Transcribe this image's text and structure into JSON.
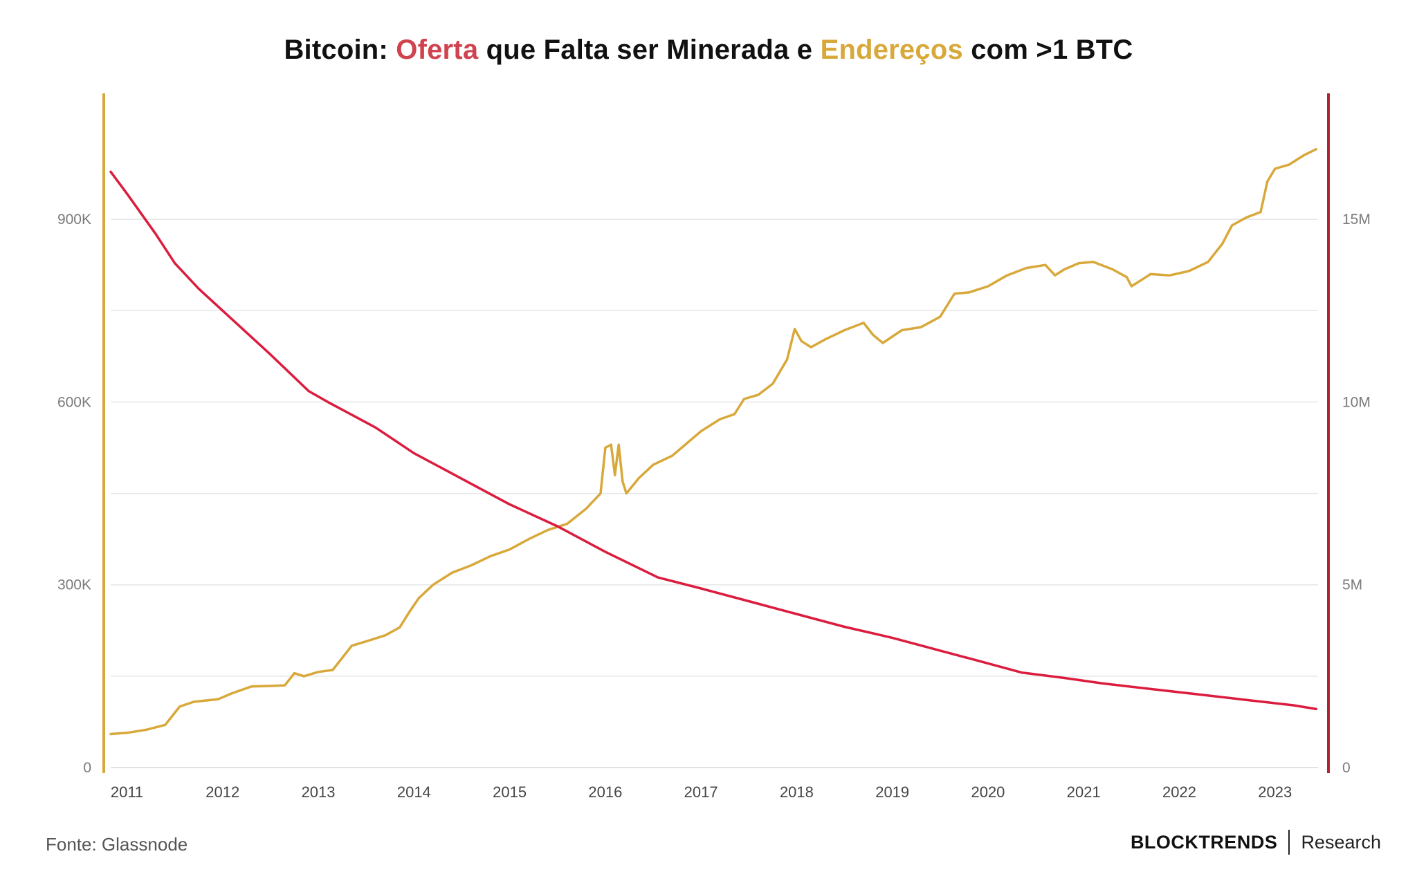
{
  "title": {
    "prefix": "Bitcoin:",
    "red_word": "Oferta",
    "middle": "que Falta ser Minerada e",
    "gold_word": "Endereços",
    "suffix": "com >1 BTC"
  },
  "source": "Fonte: Glassnode",
  "brand": {
    "name": "BLOCKTRENDS",
    "sub": "Research"
  },
  "colors": {
    "red": "#dc1c3e",
    "gold": "#d8a83a",
    "grid": "#e6e6e6",
    "right_axis": "#b3232f"
  },
  "chart_data": {
    "type": "line",
    "x_axis": {
      "ticks": [
        2011,
        2012,
        2013,
        2014,
        2015,
        2016,
        2017,
        2018,
        2019,
        2020,
        2021,
        2022,
        2023
      ],
      "range": [
        2010.83,
        2023.45
      ]
    },
    "y_left": {
      "ticks": [
        0,
        300000,
        600000,
        900000
      ],
      "tick_labels": [
        "0",
        "300K",
        "600K",
        "900K"
      ],
      "range": [
        0,
        1050000
      ]
    },
    "y_right": {
      "ticks": [
        0,
        5000000,
        10000000,
        15000000
      ],
      "tick_labels": [
        "0",
        "5M",
        "10M",
        "15M"
      ],
      "range": [
        0,
        17500000
      ]
    },
    "grid": true,
    "series": [
      {
        "axis": "left",
        "color": "#d8a83a",
        "points": [
          [
            2010.83,
            55000
          ],
          [
            2011.0,
            57000
          ],
          [
            2011.2,
            62000
          ],
          [
            2011.4,
            70000
          ],
          [
            2011.55,
            100000
          ],
          [
            2011.7,
            108000
          ],
          [
            2011.95,
            112000
          ],
          [
            2012.1,
            122000
          ],
          [
            2012.3,
            133000
          ],
          [
            2012.5,
            134000
          ],
          [
            2012.65,
            135000
          ],
          [
            2012.75,
            155000
          ],
          [
            2012.85,
            150000
          ],
          [
            2013.0,
            157000
          ],
          [
            2013.15,
            160000
          ],
          [
            2013.25,
            180000
          ],
          [
            2013.35,
            200000
          ],
          [
            2013.5,
            207000
          ],
          [
            2013.7,
            217000
          ],
          [
            2013.85,
            230000
          ],
          [
            2013.95,
            255000
          ],
          [
            2014.05,
            278000
          ],
          [
            2014.2,
            300000
          ],
          [
            2014.4,
            320000
          ],
          [
            2014.6,
            332000
          ],
          [
            2014.8,
            347000
          ],
          [
            2015.0,
            358000
          ],
          [
            2015.2,
            375000
          ],
          [
            2015.4,
            390000
          ],
          [
            2015.6,
            400000
          ],
          [
            2015.8,
            425000
          ],
          [
            2015.95,
            450000
          ],
          [
            2016.0,
            525000
          ],
          [
            2016.06,
            530000
          ],
          [
            2016.1,
            480000
          ],
          [
            2016.14,
            530000
          ],
          [
            2016.18,
            470000
          ],
          [
            2016.22,
            450000
          ],
          [
            2016.35,
            475000
          ],
          [
            2016.5,
            497000
          ],
          [
            2016.7,
            512000
          ],
          [
            2017.0,
            552000
          ],
          [
            2017.2,
            572000
          ],
          [
            2017.35,
            580000
          ],
          [
            2017.45,
            605000
          ],
          [
            2017.6,
            612000
          ],
          [
            2017.75,
            630000
          ],
          [
            2017.9,
            670000
          ],
          [
            2017.98,
            720000
          ],
          [
            2018.05,
            700000
          ],
          [
            2018.15,
            690000
          ],
          [
            2018.3,
            703000
          ],
          [
            2018.5,
            718000
          ],
          [
            2018.7,
            730000
          ],
          [
            2018.8,
            710000
          ],
          [
            2018.9,
            697000
          ],
          [
            2019.1,
            718000
          ],
          [
            2019.3,
            723000
          ],
          [
            2019.5,
            740000
          ],
          [
            2019.65,
            778000
          ],
          [
            2019.8,
            780000
          ],
          [
            2020.0,
            790000
          ],
          [
            2020.2,
            808000
          ],
          [
            2020.4,
            820000
          ],
          [
            2020.6,
            825000
          ],
          [
            2020.7,
            808000
          ],
          [
            2020.8,
            818000
          ],
          [
            2020.95,
            828000
          ],
          [
            2021.1,
            830000
          ],
          [
            2021.3,
            818000
          ],
          [
            2021.45,
            805000
          ],
          [
            2021.5,
            790000
          ],
          [
            2021.7,
            810000
          ],
          [
            2021.9,
            808000
          ],
          [
            2022.1,
            815000
          ],
          [
            2022.3,
            830000
          ],
          [
            2022.45,
            860000
          ],
          [
            2022.55,
            890000
          ],
          [
            2022.7,
            903000
          ],
          [
            2022.85,
            912000
          ],
          [
            2022.92,
            962000
          ],
          [
            2023.0,
            983000
          ],
          [
            2023.15,
            990000
          ],
          [
            2023.3,
            1005000
          ],
          [
            2023.43,
            1015000
          ]
        ]
      },
      {
        "axis": "right",
        "color": "#dc1c3e",
        "points": [
          [
            2010.83,
            16300000
          ],
          [
            2011.0,
            15700000
          ],
          [
            2011.3,
            14600000
          ],
          [
            2011.5,
            13800000
          ],
          [
            2011.75,
            13100000
          ],
          [
            2012.0,
            12500000
          ],
          [
            2012.5,
            11300000
          ],
          [
            2012.9,
            10300000
          ],
          [
            2013.1,
            10000000
          ],
          [
            2013.6,
            9300000
          ],
          [
            2014.0,
            8600000
          ],
          [
            2014.5,
            7900000
          ],
          [
            2015.0,
            7200000
          ],
          [
            2015.5,
            6600000
          ],
          [
            2016.0,
            5900000
          ],
          [
            2016.55,
            5200000
          ],
          [
            2017.0,
            4900000
          ],
          [
            2017.5,
            4550000
          ],
          [
            2018.0,
            4200000
          ],
          [
            2018.5,
            3850000
          ],
          [
            2019.0,
            3550000
          ],
          [
            2019.5,
            3200000
          ],
          [
            2020.0,
            2850000
          ],
          [
            2020.35,
            2600000
          ],
          [
            2020.8,
            2450000
          ],
          [
            2021.2,
            2300000
          ],
          [
            2021.7,
            2150000
          ],
          [
            2022.2,
            2000000
          ],
          [
            2022.7,
            1850000
          ],
          [
            2023.2,
            1700000
          ],
          [
            2023.43,
            1600000
          ]
        ]
      }
    ]
  }
}
